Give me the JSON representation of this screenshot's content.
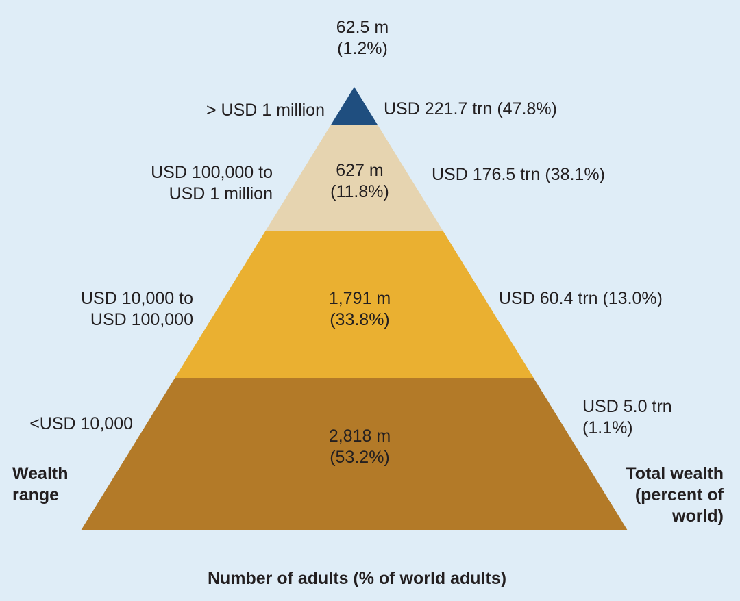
{
  "chart_data": {
    "type": "pyramid",
    "xlabel": "Number of adults (% of world adults)",
    "left_axis_label": [
      "Wealth",
      "range"
    ],
    "right_axis_label": [
      "Total wealth",
      "(percent of",
      "world)"
    ],
    "colors": {
      "background": "#dfedf7",
      "tier_top": "#1f4e7f",
      "tier_upper_middle": "#e6d4b0",
      "tier_middle": "#eab031",
      "tier_base": "#b37a28",
      "text": "#231f20",
      "text_on_dark": "#ffffff"
    },
    "tiers": [
      {
        "wealth_range": [
          "> USD 1 million"
        ],
        "adults": "62.5 m",
        "adults_share": "(1.2%)",
        "adults_millions": 62.5,
        "adults_pct": 1.2,
        "total_wealth": [
          "USD 221.7 trn (47.8%)"
        ],
        "wealth_trn": 221.7,
        "wealth_pct": 47.8
      },
      {
        "wealth_range": [
          "USD 100,000 to",
          "USD 1 million"
        ],
        "adults": "627 m",
        "adults_share": "(11.8%)",
        "adults_millions": 627,
        "adults_pct": 11.8,
        "total_wealth": [
          "USD 176.5 trn (38.1%)"
        ],
        "wealth_trn": 176.5,
        "wealth_pct": 38.1
      },
      {
        "wealth_range": [
          "USD 10,000 to",
          "USD 100,000"
        ],
        "adults": "1,791 m",
        "adults_share": "(33.8%)",
        "adults_millions": 1791,
        "adults_pct": 33.8,
        "total_wealth": [
          "USD 60.4 trn (13.0%)"
        ],
        "wealth_trn": 60.4,
        "wealth_pct": 13.0
      },
      {
        "wealth_range": [
          "<USD 10,000"
        ],
        "adults": "2,818 m",
        "adults_share": "(53.2%)",
        "adults_millions": 2818,
        "adults_pct": 53.2,
        "total_wealth": [
          "USD 5.0 trn",
          "(1.1%)"
        ],
        "wealth_trn": 5.0,
        "wealth_pct": 1.1
      }
    ]
  }
}
